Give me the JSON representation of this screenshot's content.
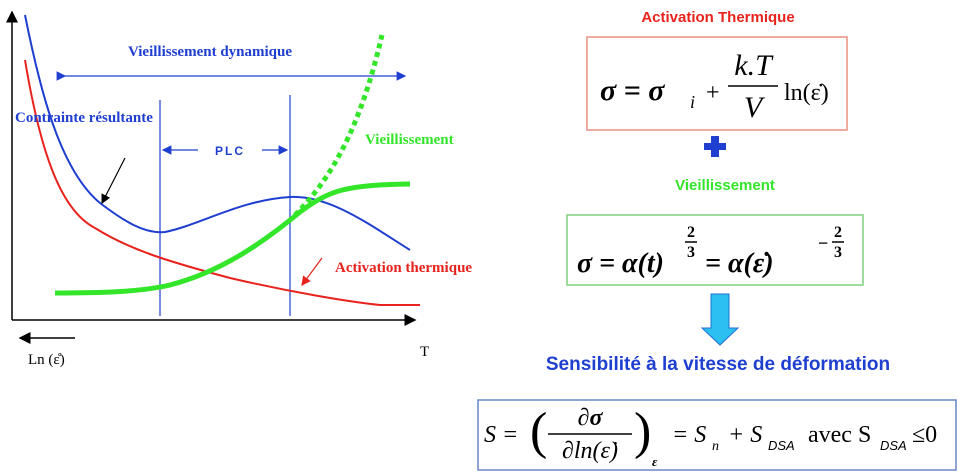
{
  "diagram": {
    "labels": {
      "dynamic_aging": "Vieillissement dynamique",
      "resultant": "Contrainte résultante",
      "plc": "PLC",
      "aging": "Vieillissement",
      "thermal": "Activation thermique",
      "x_left": "Ln (ε̊)",
      "x_right": "T"
    }
  },
  "panels": {
    "thermal": {
      "title": "Activation Thermique",
      "formula": {
        "lhs": "σ = σ",
        "sub": "i",
        "plus": "+",
        "num": "k.T",
        "den": "V",
        "ln": "ln(ε̇)"
      }
    },
    "aging": {
      "title": "Vieillissement",
      "formula": {
        "lhs": "σ = α(t)",
        "exp1_num": "2",
        "exp1_den": "3",
        "mid": "= α(ε̇)",
        "exp2_sign": "−",
        "exp2_num": "2",
        "exp2_den": "3"
      }
    },
    "sensitivity": {
      "title": "Sensibilité à la vitesse de déformation",
      "formula": {
        "lhs": "S =",
        "open": "(",
        "num": "∂σ",
        "den": "∂ln(ε̇)",
        "close": ")",
        "sub": "ε",
        "rhs1": "= S",
        "rhs1_sub": "n",
        "plus": "+ S",
        "plus_sub": "DSA",
        "avec": "avec S",
        "avec_sub": "DSA",
        "leq": "≤0"
      }
    }
  }
}
